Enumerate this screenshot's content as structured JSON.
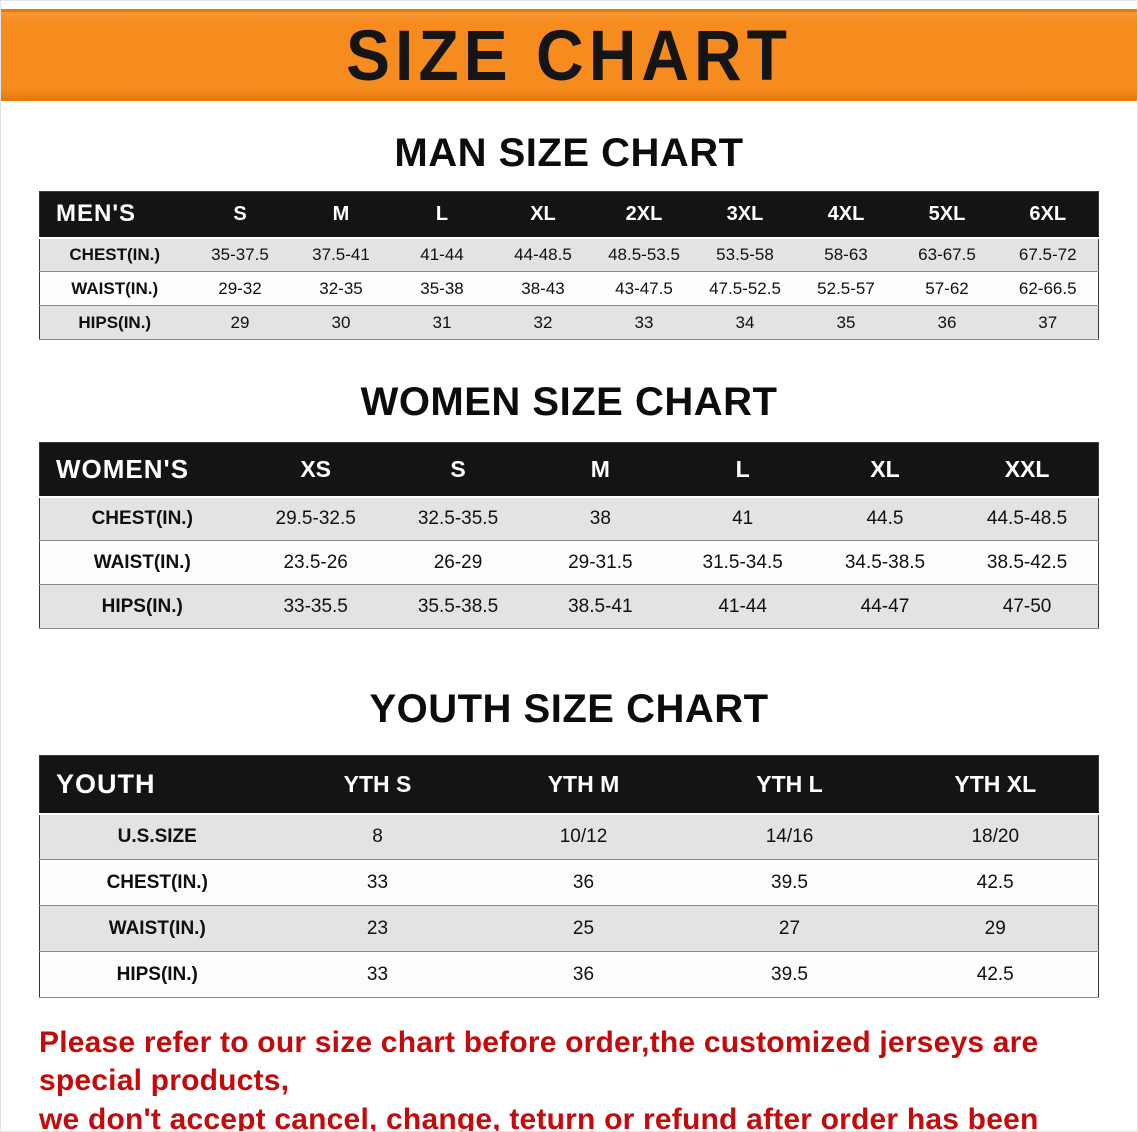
{
  "banner": {
    "title": "SIZE CHART"
  },
  "colors": {
    "banner_orange": "#f68b1e",
    "header_black": "#141414",
    "stripe_gray": "#e3e3e3",
    "disclaimer_red": "#c40a0a"
  },
  "sections": [
    {
      "title": "MAN SIZE CHART",
      "table": {
        "label_header": "MEN'S",
        "columns": [
          "S",
          "M",
          "L",
          "XL",
          "2XL",
          "3XL",
          "4XL",
          "5XL",
          "6XL"
        ],
        "rows": [
          {
            "label": "CHEST(IN.)",
            "values": [
              "35-37.5",
              "37.5-41",
              "41-44",
              "44-48.5",
              "48.5-53.5",
              "53.5-58",
              "58-63",
              "63-67.5",
              "67.5-72"
            ]
          },
          {
            "label": "WAIST(IN.)",
            "values": [
              "29-32",
              "32-35",
              "35-38",
              "38-43",
              "43-47.5",
              "47.5-52.5",
              "52.5-57",
              "57-62",
              "62-66.5"
            ]
          },
          {
            "label": "HIPS(IN.)",
            "values": [
              "29",
              "30",
              "31",
              "32",
              "33",
              "34",
              "35",
              "36",
              "37"
            ]
          }
        ]
      }
    },
    {
      "title": "WOMEN SIZE CHART",
      "table": {
        "label_header": "WOMEN'S",
        "columns": [
          "XS",
          "S",
          "M",
          "L",
          "XL",
          "XXL"
        ],
        "rows": [
          {
            "label": "CHEST(IN.)",
            "values": [
              "29.5-32.5",
              "32.5-35.5",
              "38",
              "41",
              "44.5",
              "44.5-48.5"
            ]
          },
          {
            "label": "WAIST(IN.)",
            "values": [
              "23.5-26",
              "26-29",
              "29-31.5",
              "31.5-34.5",
              "34.5-38.5",
              "38.5-42.5"
            ]
          },
          {
            "label": "HIPS(IN.)",
            "values": [
              "33-35.5",
              "35.5-38.5",
              "38.5-41",
              "41-44",
              "44-47",
              "47-50"
            ]
          }
        ]
      }
    },
    {
      "title": "YOUTH SIZE CHART",
      "table": {
        "label_header": "YOUTH",
        "columns": [
          "YTH S",
          "YTH M",
          "YTH L",
          "YTH XL"
        ],
        "rows": [
          {
            "label": "U.S.SIZE",
            "values": [
              "8",
              "10/12",
              "14/16",
              "18/20"
            ]
          },
          {
            "label": "CHEST(IN.)",
            "values": [
              "33",
              "36",
              "39.5",
              "42.5"
            ]
          },
          {
            "label": "WAIST(IN.)",
            "values": [
              "23",
              "25",
              "27",
              "29"
            ]
          },
          {
            "label": "HIPS(IN.)",
            "values": [
              "33",
              "36",
              "39.5",
              "42.5"
            ]
          }
        ]
      }
    }
  ],
  "disclaimer": {
    "line1": "Please refer to our size chart before order,the customized jerseys are special products,",
    "line2": "we don't accept cancel, change, teturn or refund after order has been placed!"
  }
}
